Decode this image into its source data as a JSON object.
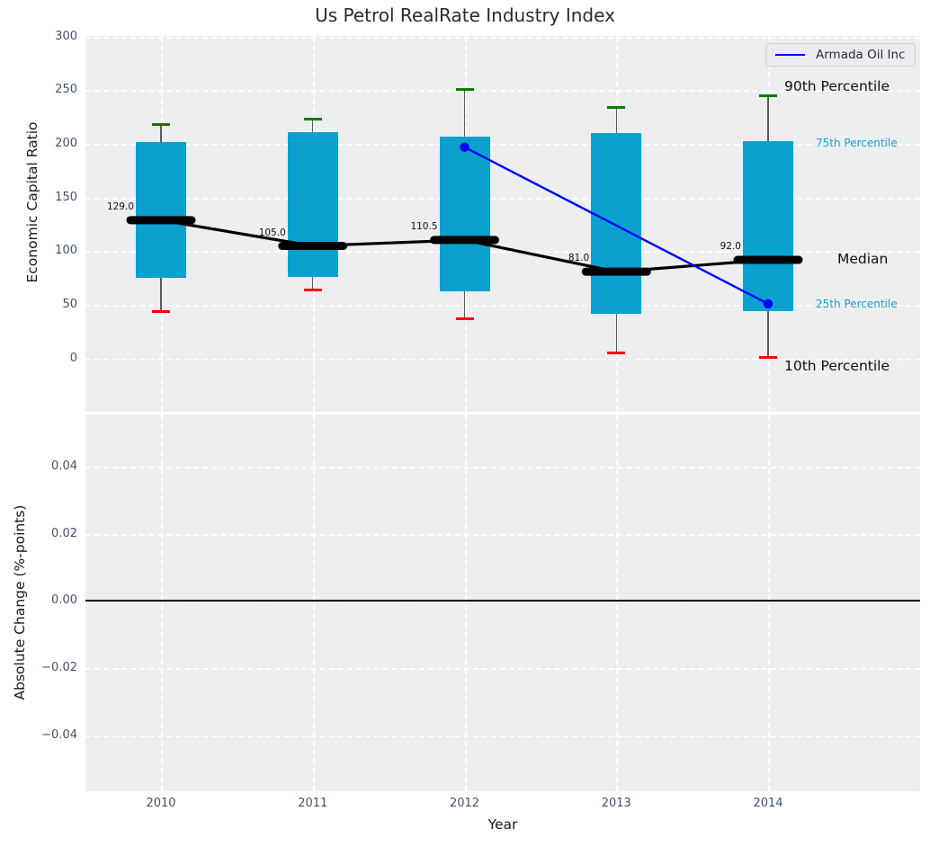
{
  "title": "Us Petrol RealRate Industry Index",
  "legend": {
    "label": "Armada Oil Inc"
  },
  "annotations": {
    "p90": "90th Percentile",
    "p75": "75th Percentile",
    "median_label": "Median",
    "p25": "25th Percentile",
    "p10": "10th Percentile"
  },
  "axes": {
    "top": {
      "ylabel": "Economic Capital Ratio",
      "yticks": [
        {
          "label": "300",
          "value": 300
        },
        {
          "label": "250",
          "value": 250
        },
        {
          "label": "200",
          "value": 200
        },
        {
          "label": "150",
          "value": 150
        },
        {
          "label": "100",
          "value": 100
        },
        {
          "label": "50",
          "value": 50
        },
        {
          "label": "0",
          "value": 0
        }
      ]
    },
    "bottom": {
      "ylabel": "Absolute Change (%-points)",
      "yticks": [
        {
          "label": "0.04",
          "value": 0.04
        },
        {
          "label": "0.02",
          "value": 0.02
        },
        {
          "label": "0.00",
          "value": 0.0
        },
        {
          "label": "−0.02",
          "value": -0.02
        },
        {
          "label": "−0.04",
          "value": -0.04
        }
      ]
    },
    "xlabel": "Year",
    "xticks": [
      "2010",
      "2011",
      "2012",
      "2013",
      "2014"
    ]
  },
  "colors": {
    "box": "#0aa1ce",
    "median": "#000000",
    "company_line": "#0000ff",
    "cap_high": "#008000",
    "cap_low": "#ff0000",
    "percentile_text": "#17a0cf",
    "panel_bg": "#eceef0",
    "grid": "#ffffff"
  },
  "chart_data": {
    "type": "boxplot",
    "title": "Us Petrol RealRate Industry Index",
    "xlabel": "Year",
    "ylabel_top": "Economic Capital Ratio",
    "ylabel_bottom": "Absolute Change (%-points)",
    "categories": [
      "2010",
      "2011",
      "2012",
      "2013",
      "2014"
    ],
    "ylim_top": [
      -50,
      301
    ],
    "ylim_bottom": [
      -0.056,
      0.056
    ],
    "grid": true,
    "legend_position": "upper right",
    "series": [
      {
        "name": "90th Percentile",
        "values": [
          218,
          223,
          251,
          234,
          245
        ]
      },
      {
        "name": "75th Percentile",
        "values": [
          202,
          211,
          207,
          210,
          203
        ]
      },
      {
        "name": "Median",
        "values": [
          129,
          105,
          110.5,
          81,
          92
        ]
      },
      {
        "name": "25th Percentile",
        "values": [
          75,
          76,
          63,
          42,
          44
        ]
      },
      {
        "name": "10th Percentile",
        "values": [
          44,
          64,
          37,
          5,
          1
        ]
      }
    ],
    "median_point_labels": [
      "129.0",
      "105.0",
      "110.5",
      "81.0",
      "92.0"
    ],
    "company_line": {
      "name": "Armada Oil Inc",
      "categories": [
        "2012",
        "2014"
      ],
      "values": [
        197,
        51
      ]
    },
    "bottom_panel": {
      "series": [],
      "zero_line": 0.0
    }
  }
}
